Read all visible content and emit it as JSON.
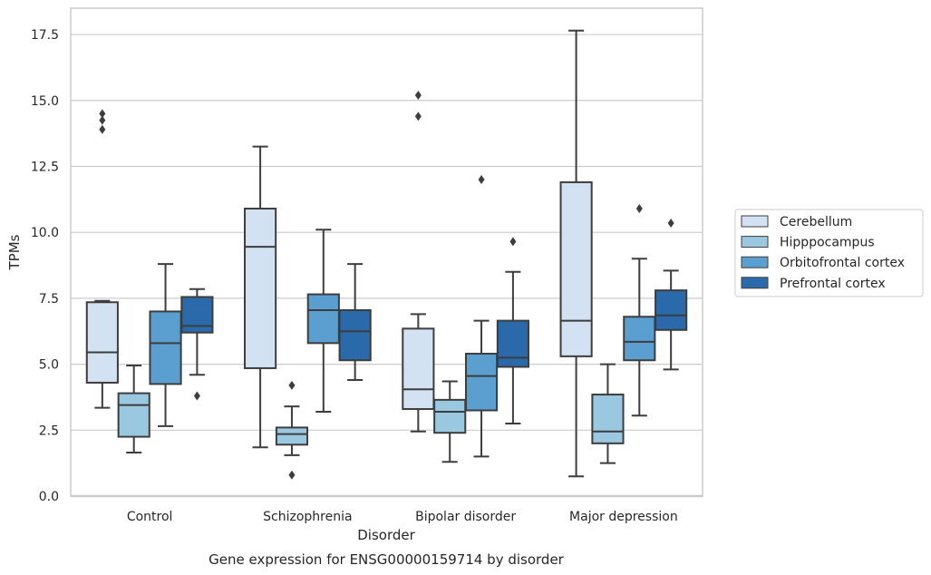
{
  "chart_data": {
    "type": "box",
    "caption": "Gene expression for ENSG00000159714 by disorder",
    "xlabel": "Disorder",
    "ylabel": "TPMs",
    "ylim": [
      0,
      18.5
    ],
    "yticks": [
      "0.0",
      "2.5",
      "5.0",
      "7.5",
      "10.0",
      "12.5",
      "15.0",
      "17.5"
    ],
    "grid": "horizontal",
    "legend_position": "right",
    "categories": [
      "Control",
      "Schizophrenia",
      "Bipolar disorder",
      "Major depression"
    ],
    "series": [
      {
        "name": "Cerebellum",
        "color": "#d2e2f2",
        "boxes": [
          {
            "whislo": 3.35,
            "q1": 4.3,
            "med": 5.45,
            "q3": 7.35,
            "whishi": 7.4,
            "fliers": [
              13.9,
              14.25,
              14.5
            ]
          },
          {
            "whislo": 1.85,
            "q1": 4.85,
            "med": 9.45,
            "q3": 10.9,
            "whishi": 13.25,
            "fliers": []
          },
          {
            "whislo": 2.45,
            "q1": 3.3,
            "med": 4.05,
            "q3": 6.35,
            "whishi": 6.9,
            "fliers": [
              14.4,
              15.2
            ]
          },
          {
            "whislo": 0.75,
            "q1": 5.3,
            "med": 6.65,
            "q3": 11.9,
            "whishi": 17.65,
            "fliers": []
          }
        ]
      },
      {
        "name": "Hipppocampus",
        "color": "#9ac8e0",
        "boxes": [
          {
            "whislo": 1.65,
            "q1": 2.25,
            "med": 3.45,
            "q3": 3.9,
            "whishi": 4.95,
            "fliers": []
          },
          {
            "whislo": 1.55,
            "q1": 1.95,
            "med": 2.35,
            "q3": 2.6,
            "whishi": 3.4,
            "fliers": [
              0.8,
              4.2
            ]
          },
          {
            "whislo": 1.3,
            "q1": 2.4,
            "med": 3.2,
            "q3": 3.65,
            "whishi": 4.35,
            "fliers": []
          },
          {
            "whislo": 1.25,
            "q1": 2.0,
            "med": 2.45,
            "q3": 3.85,
            "whishi": 5.0,
            "fliers": []
          }
        ]
      },
      {
        "name": "Orbitofrontal cortex",
        "color": "#5a9fcf",
        "boxes": [
          {
            "whislo": 2.65,
            "q1": 4.25,
            "med": 5.8,
            "q3": 7.0,
            "whishi": 8.8,
            "fliers": []
          },
          {
            "whislo": 3.2,
            "q1": 5.8,
            "med": 7.05,
            "q3": 7.65,
            "whishi": 10.1,
            "fliers": []
          },
          {
            "whislo": 1.5,
            "q1": 3.25,
            "med": 4.55,
            "q3": 5.4,
            "whishi": 6.65,
            "fliers": [
              12.0
            ]
          },
          {
            "whislo": 3.05,
            "q1": 5.15,
            "med": 5.85,
            "q3": 6.8,
            "whishi": 9.0,
            "fliers": [
              10.9
            ]
          }
        ]
      },
      {
        "name": "Prefrontal cortex",
        "color": "#2a6aab",
        "boxes": [
          {
            "whislo": 4.6,
            "q1": 6.2,
            "med": 6.45,
            "q3": 7.55,
            "whishi": 7.85,
            "fliers": [
              3.8
            ]
          },
          {
            "whislo": 4.4,
            "q1": 5.15,
            "med": 6.25,
            "q3": 7.05,
            "whishi": 8.8,
            "fliers": []
          },
          {
            "whislo": 2.75,
            "q1": 4.9,
            "med": 5.25,
            "q3": 6.65,
            "whishi": 8.5,
            "fliers": [
              9.65
            ]
          },
          {
            "whislo": 4.8,
            "q1": 6.3,
            "med": 6.85,
            "q3": 7.8,
            "whishi": 8.55,
            "fliers": [
              10.35
            ]
          }
        ]
      }
    ]
  }
}
